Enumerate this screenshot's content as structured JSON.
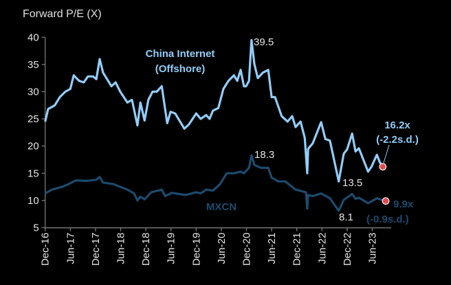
{
  "chart_data": {
    "type": "line",
    "title": "Forward P/E (X)",
    "xlabel": "",
    "ylabel": "Forward P/E (X)",
    "ylim": [
      5,
      40
    ],
    "yticks": [
      40,
      35,
      30,
      25,
      20,
      15,
      10,
      5
    ],
    "x_unit": "months since Dec-16",
    "xticks": [
      {
        "m": 0,
        "label": "Dec-16"
      },
      {
        "m": 6,
        "label": "Jun-17"
      },
      {
        "m": 12,
        "label": "Dec-17"
      },
      {
        "m": 18,
        "label": "Jun-18"
      },
      {
        "m": 24,
        "label": "Dec-18"
      },
      {
        "m": 30,
        "label": "Jun-19"
      },
      {
        "m": 36,
        "label": "Dec-19"
      },
      {
        "m": 42,
        "label": "Jun-20"
      },
      {
        "m": 48,
        "label": "Dec-20"
      },
      {
        "m": 54,
        "label": "Jun-21"
      },
      {
        "m": 60,
        "label": "Dec-21"
      },
      {
        "m": 66,
        "label": "Jun-22"
      },
      {
        "m": 72,
        "label": "Dec-22"
      },
      {
        "m": 78,
        "label": "Jun-23"
      }
    ],
    "grid": false,
    "series": [
      {
        "name": "China Internet (Offshore)",
        "label_line1": "China Internet",
        "label_line2": "(Offshore)",
        "color": "#92CDF8",
        "points": [
          [
            0,
            24.5
          ],
          [
            0.7,
            26.8
          ],
          [
            2.3,
            27.5
          ],
          [
            3.5,
            29
          ],
          [
            4.8,
            30
          ],
          [
            6,
            30.5
          ],
          [
            6.8,
            33
          ],
          [
            8.1,
            32
          ],
          [
            9.2,
            31.7
          ],
          [
            10.2,
            32.8
          ],
          [
            11.4,
            32.8
          ],
          [
            12.2,
            32.3
          ],
          [
            13,
            36
          ],
          [
            13.8,
            33.5
          ],
          [
            14.6,
            32.5
          ],
          [
            15.8,
            31
          ],
          [
            16.8,
            31.7
          ],
          [
            17.9,
            30
          ],
          [
            19.6,
            28
          ],
          [
            20.7,
            28.5
          ],
          [
            22,
            23.8
          ],
          [
            22.7,
            28
          ],
          [
            23.7,
            24.7
          ],
          [
            24.6,
            28.5
          ],
          [
            25.6,
            30
          ],
          [
            26.6,
            30
          ],
          [
            27.8,
            31
          ],
          [
            29.1,
            24.2
          ],
          [
            29.9,
            26.3
          ],
          [
            31,
            26
          ],
          [
            33.2,
            23.2
          ],
          [
            34.3,
            24
          ],
          [
            36,
            26
          ],
          [
            37.1,
            25
          ],
          [
            38.4,
            25.7
          ],
          [
            39.2,
            25
          ],
          [
            40,
            26.5
          ],
          [
            41.3,
            27
          ],
          [
            42.5,
            30.5
          ],
          [
            43.7,
            32
          ],
          [
            45,
            33
          ],
          [
            45.8,
            32
          ],
          [
            46.6,
            34
          ],
          [
            47.4,
            31
          ],
          [
            47.9,
            31
          ],
          [
            48.6,
            32
          ],
          [
            49.2,
            39.5
          ],
          [
            49.9,
            35
          ],
          [
            50.7,
            32.5
          ],
          [
            51.9,
            33.5
          ],
          [
            53.2,
            34
          ],
          [
            54,
            29
          ],
          [
            54.8,
            29
          ],
          [
            56.4,
            25.5
          ],
          [
            57.8,
            24.5
          ],
          [
            58.9,
            25.5
          ],
          [
            59.7,
            23.5
          ],
          [
            60.9,
            24.5
          ],
          [
            61.9,
            21.5
          ],
          [
            62.5,
            15
          ],
          [
            62.7,
            19.5
          ],
          [
            63.8,
            20.5
          ],
          [
            65.8,
            24.4
          ],
          [
            66.8,
            21.3
          ],
          [
            67.9,
            21
          ],
          [
            70,
            13.5
          ],
          [
            71.2,
            18.6
          ],
          [
            72,
            19.4
          ],
          [
            73.2,
            22.3
          ],
          [
            74,
            19
          ],
          [
            74.8,
            19.6
          ],
          [
            77,
            15.3
          ],
          [
            77.8,
            16.2
          ],
          [
            79.1,
            18.4
          ],
          [
            79.8,
            17
          ],
          [
            80.5,
            16.2
          ]
        ],
        "peak_label": "39.5",
        "trough_label": "13.5",
        "current_value_label": "16.2x",
        "current_sd_label": "(-2.2s.d.)"
      },
      {
        "name": "MXCN",
        "label_line1": "MXCN",
        "color": "#1C4B6E",
        "points": [
          [
            0,
            11.3
          ],
          [
            1.6,
            12
          ],
          [
            4,
            12.5
          ],
          [
            5.6,
            13
          ],
          [
            7.3,
            13.7
          ],
          [
            9.7,
            13.6
          ],
          [
            12.2,
            13.8
          ],
          [
            13,
            14.3
          ],
          [
            13.8,
            13.3
          ],
          [
            16.3,
            13
          ],
          [
            17.9,
            12.5
          ],
          [
            19.6,
            12
          ],
          [
            21.2,
            11.3
          ],
          [
            22,
            10
          ],
          [
            22.7,
            10.7
          ],
          [
            23.7,
            10.2
          ],
          [
            25.3,
            11.5
          ],
          [
            27.8,
            12
          ],
          [
            28.6,
            10.8
          ],
          [
            30.2,
            11.4
          ],
          [
            33.5,
            11
          ],
          [
            36,
            11.5
          ],
          [
            37.1,
            11.3
          ],
          [
            38.4,
            12
          ],
          [
            40,
            11.8
          ],
          [
            41.7,
            13
          ],
          [
            43.3,
            15
          ],
          [
            45,
            15
          ],
          [
            46.6,
            15.3
          ],
          [
            47.4,
            15
          ],
          [
            48.6,
            16
          ],
          [
            49.2,
            18.3
          ],
          [
            49.9,
            16.5
          ],
          [
            51.5,
            16
          ],
          [
            53.2,
            16
          ],
          [
            54,
            14.2
          ],
          [
            55.6,
            13.5
          ],
          [
            57.3,
            13.5
          ],
          [
            59.7,
            12
          ],
          [
            62.2,
            11.5
          ],
          [
            62.5,
            8.5
          ],
          [
            62.7,
            11
          ],
          [
            63.8,
            10.8
          ],
          [
            65.8,
            11.3
          ],
          [
            67.9,
            10.4
          ],
          [
            70,
            8.1
          ],
          [
            71.2,
            10.1
          ],
          [
            73.2,
            11.2
          ],
          [
            74,
            10.3
          ],
          [
            74.8,
            10.5
          ],
          [
            77,
            9.5
          ],
          [
            79.1,
            10.4
          ],
          [
            81.2,
            9.9
          ]
        ],
        "peak_label": "18.3",
        "trough_label": "8.1",
        "current_value_label": "9.9x",
        "current_sd_label": "(-0.9s.d.)"
      }
    ],
    "marker_color": "#E04A4A"
  }
}
